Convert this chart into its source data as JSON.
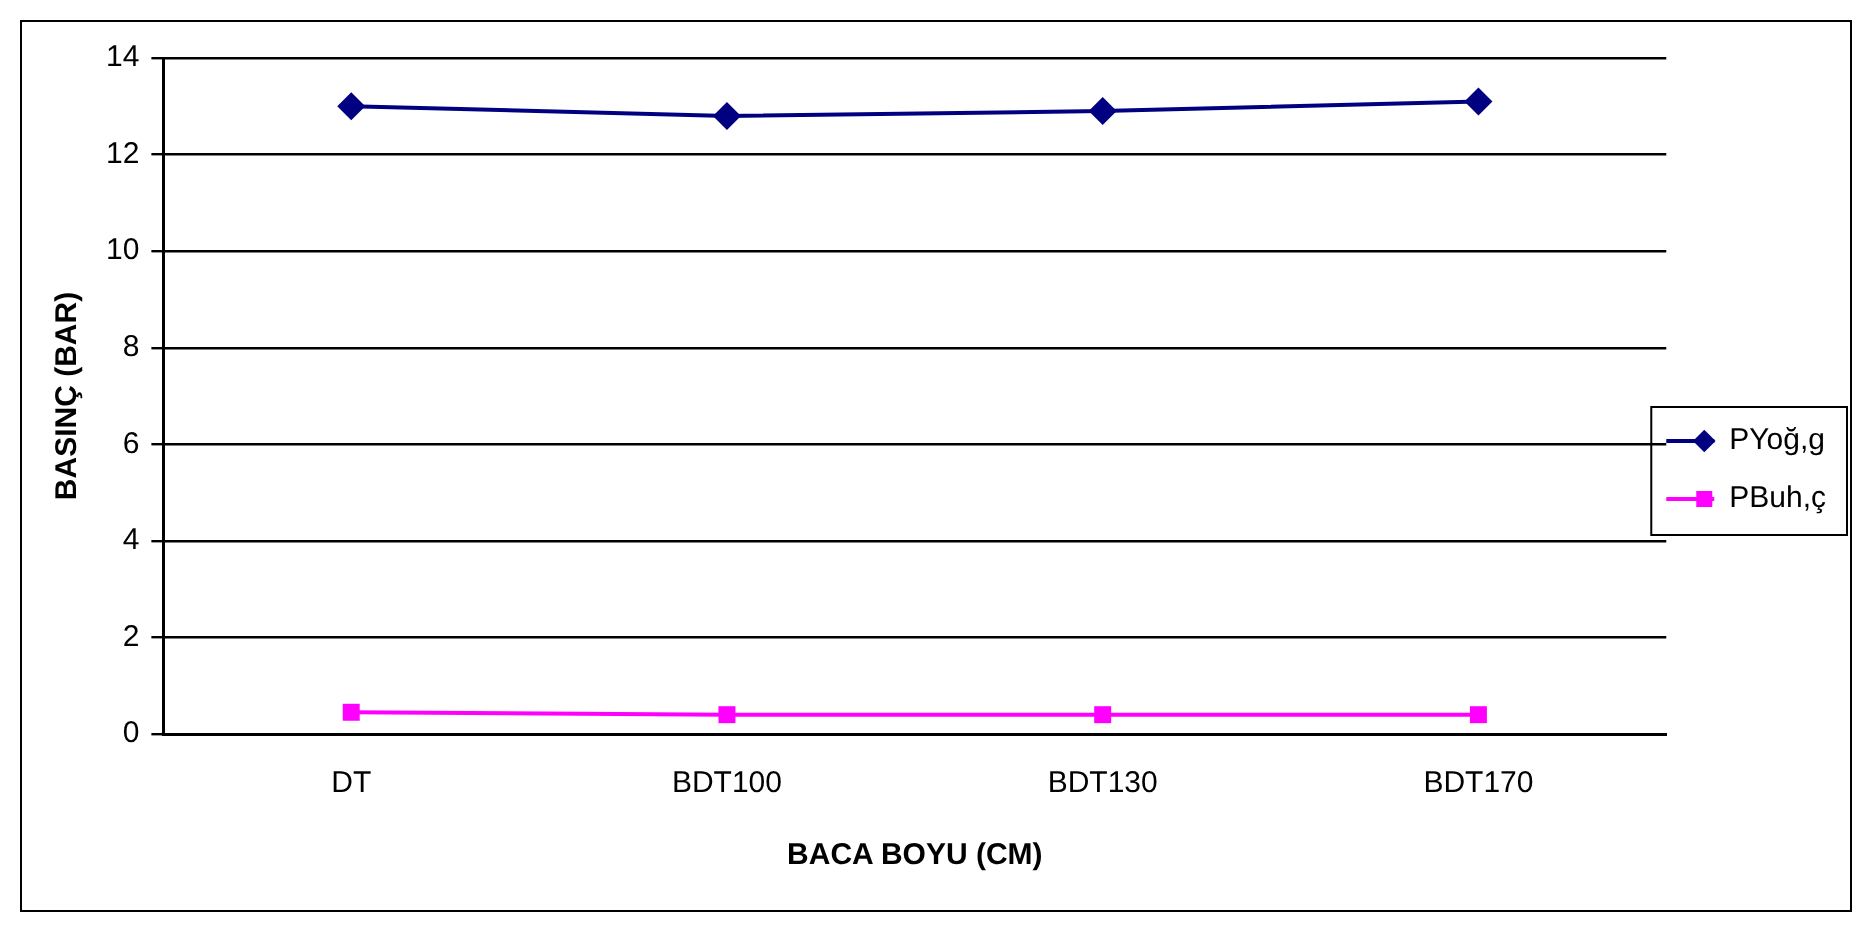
{
  "chart_data": {
    "type": "line",
    "xlabel": "BACA BOYU (CM)",
    "ylabel": "BASINÇ (BAR)",
    "categories": [
      "DT",
      "BDT100",
      "BDT130",
      "BDT170"
    ],
    "series": [
      {
        "name": "PYoğ,g",
        "color": "#000080",
        "values": [
          13.0,
          12.8,
          12.9,
          13.1
        ],
        "marker": "diamond"
      },
      {
        "name": "PBuh,ç",
        "color": "#ff00ff",
        "values": [
          0.45,
          0.4,
          0.4,
          0.4
        ],
        "marker": "square"
      }
    ],
    "ylim": [
      0,
      14
    ],
    "yticks": [
      0,
      2,
      4,
      6,
      8,
      10,
      12,
      14
    ],
    "grid": "y",
    "legend": "right",
    "line_style": "solid"
  }
}
